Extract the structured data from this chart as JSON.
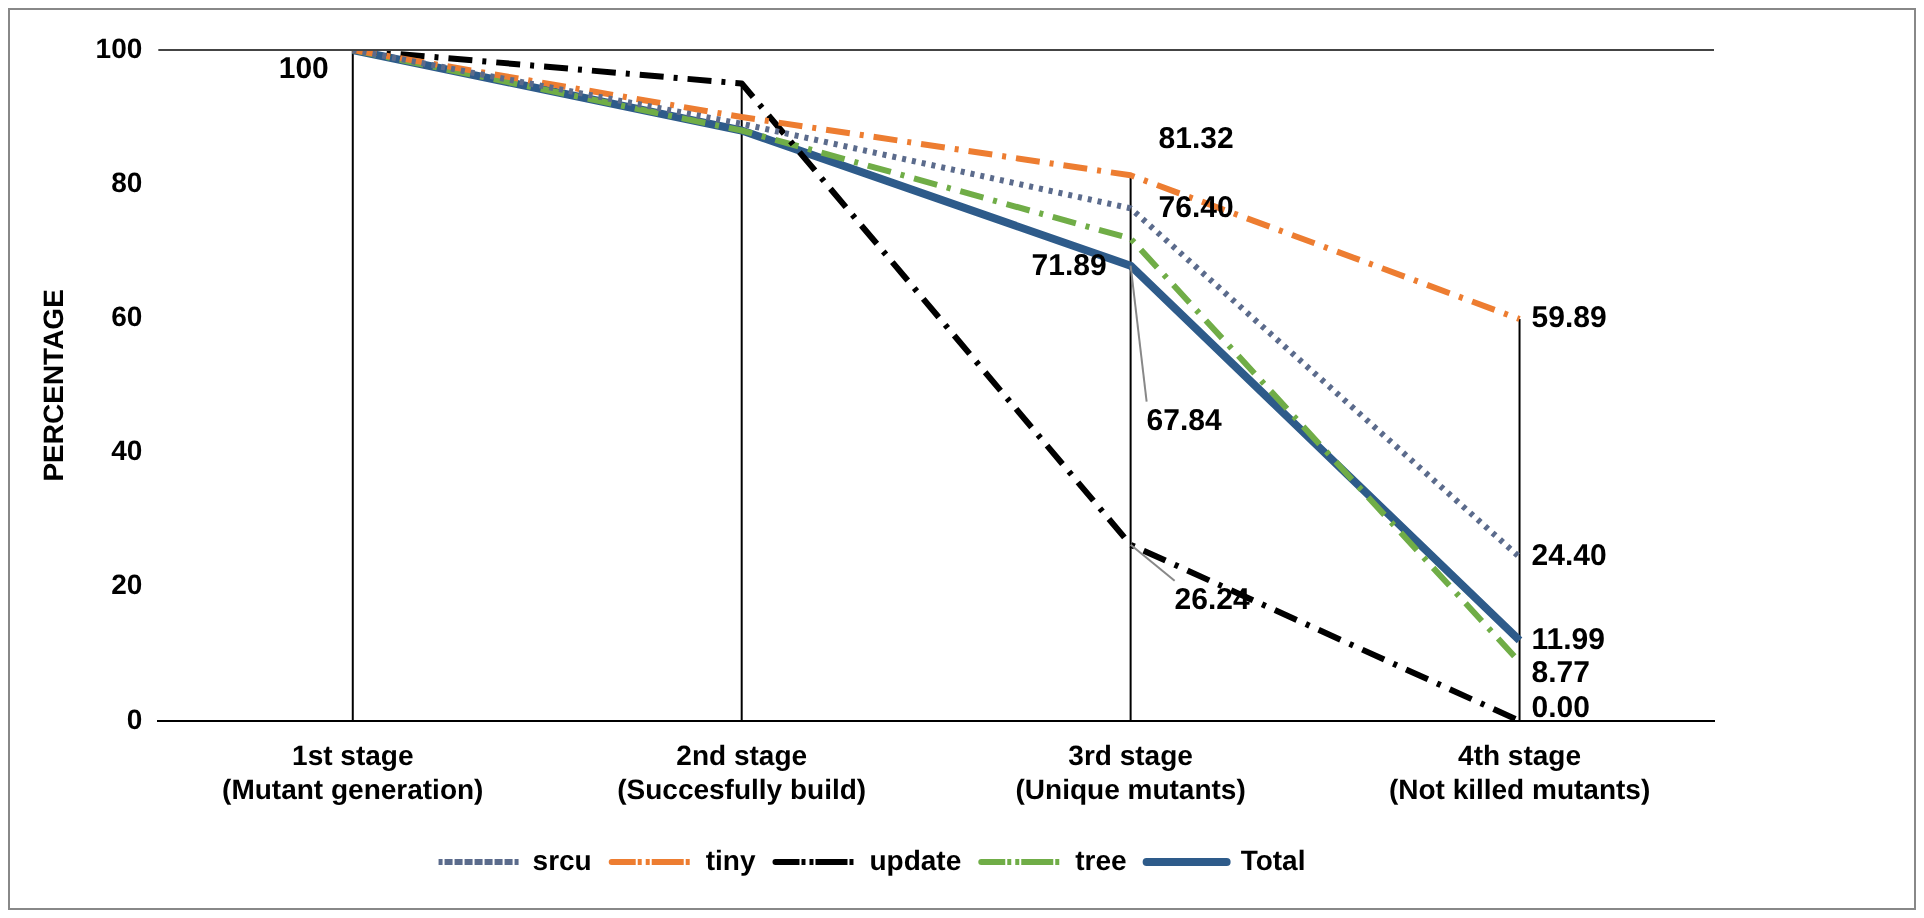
{
  "chart_data": {
    "type": "line",
    "ylabel": "PERCENTAGE",
    "categories": [
      "1st stage\n(Mutant generation)",
      "2nd stage\n(Succesfully build)",
      "3rd stage\n(Unique mutants)",
      "4th stage\n(Not killed mutants)"
    ],
    "ylim": [
      0,
      100
    ],
    "yticks": [
      0,
      20,
      40,
      60,
      80,
      100
    ],
    "grid": "x",
    "legend": "bottom",
    "marker": "none",
    "series": [
      {
        "name": "srcu",
        "color": "#5b6b8c",
        "line_style": "dotted",
        "values": [
          100,
          89,
          76.4,
          24.4
        ],
        "value_labels": [
          null,
          null,
          "76.40",
          "24.40"
        ]
      },
      {
        "name": "tiny",
        "color": "#ed7d31",
        "line_style": "dashed",
        "values": [
          100,
          90,
          81.32,
          59.89
        ],
        "value_labels": [
          null,
          null,
          "81.32",
          "59.89"
        ]
      },
      {
        "name": "update",
        "color": "#000000",
        "line_style": "dashed",
        "values": [
          100,
          95,
          26.24,
          0
        ],
        "value_labels": [
          null,
          null,
          "26.24",
          "0.00"
        ]
      },
      {
        "name": "tree",
        "color": "#70ad47",
        "line_style": "dashed",
        "values": [
          100,
          88,
          71.89,
          8.77
        ],
        "value_labels": [
          null,
          null,
          "71.89",
          "8.77"
        ]
      },
      {
        "name": "Total",
        "color": "#2e5b8a",
        "line_style": "solid",
        "values": [
          100,
          88,
          67.84,
          11.99
        ],
        "value_labels": [
          "100",
          null,
          "67.84",
          "11.99"
        ]
      }
    ]
  }
}
